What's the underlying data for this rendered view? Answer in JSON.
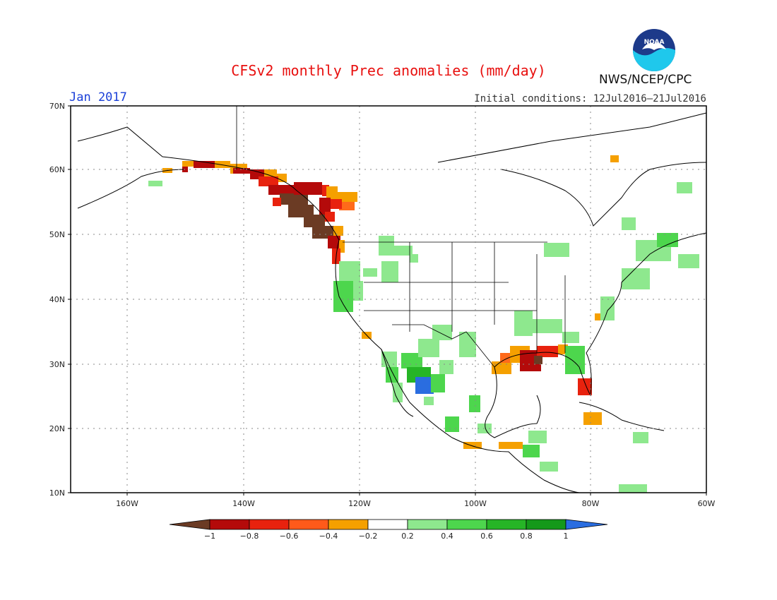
{
  "header": {
    "title": "CFSv2 monthly Prec anomalies (mm/day)",
    "month": "Jan 2017",
    "initial_conditions": "Initial conditions: 12Jul2016–21Jul2016",
    "agency": "NWS/NCEP/CPC",
    "logo_text": "NOAA"
  },
  "map": {
    "lat_labels": [
      "70N",
      "60N",
      "50N",
      "40N",
      "30N",
      "20N",
      "10N"
    ],
    "lon_labels": [
      "160W",
      "140W",
      "120W",
      "100W",
      "80W",
      "60W"
    ],
    "lat_range": [
      10,
      70
    ],
    "lon_range": [
      -170,
      -60
    ],
    "grid": "dotted"
  },
  "colorbar": {
    "labels": [
      "−1",
      "−0.8",
      "−0.6",
      "−0.4",
      "−0.2",
      "0.2",
      "0.4",
      "0.6",
      "0.8",
      "1"
    ],
    "colors": [
      "#6b3b24",
      "#b40a0a",
      "#e8220e",
      "#ff5a1a",
      "#f5a000",
      "#ffffff",
      "#8ee88e",
      "#4dd64d",
      "#26b526",
      "#14991a",
      "#2a6de0"
    ]
  },
  "colors": {
    "title": "#e8100f",
    "month": "#1a3fd8",
    "brown": "#6b3b24",
    "darkred": "#b40a0a",
    "red": "#e8220e",
    "orange": "#ff6a1a",
    "lightorange": "#f5a000",
    "palegreen": "#8ee88e",
    "green": "#4dd64d",
    "midgreen": "#26b526",
    "darkgreen": "#14991a",
    "blue": "#2a6de0"
  }
}
